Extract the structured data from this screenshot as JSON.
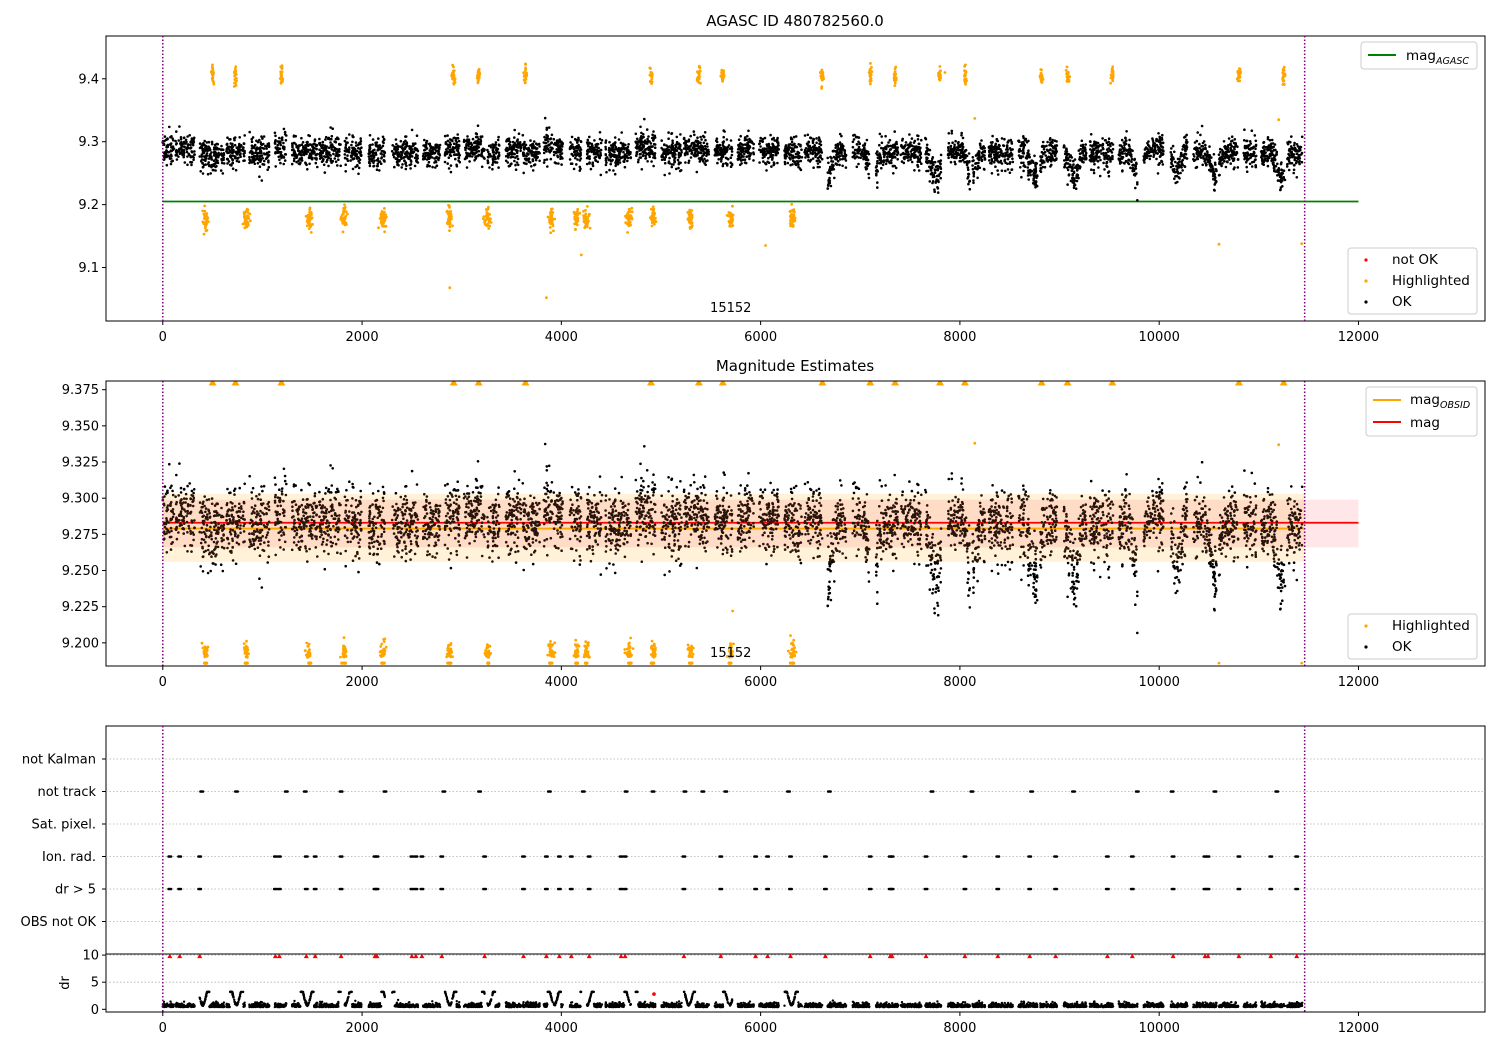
{
  "chart_data": [
    {
      "type": "scatter",
      "title": "AGASC ID 480782560.0",
      "xlim": [
        -570,
        13270
      ],
      "ylim": [
        9.015,
        9.468
      ],
      "xticks": [
        0,
        2000,
        4000,
        6000,
        8000,
        10000,
        12000
      ],
      "yticks": [
        9.1,
        9.2,
        9.3,
        9.4
      ],
      "xtick_labels": [
        "0",
        "2000",
        "4000",
        "6000",
        "8000",
        "10000",
        "12000"
      ],
      "ytick_labels": [
        "9.1",
        "9.2",
        "9.3",
        "9.4"
      ],
      "vlines": [
        0,
        11460
      ],
      "obsid_label": "15152",
      "obsid_label_x": 5700,
      "lines": [
        {
          "name": "mag_AGASC",
          "y": 9.205,
          "x0": 0,
          "x1": 12000,
          "color": "#008000"
        }
      ],
      "series": [
        {
          "name": "OK",
          "color": "#000000",
          "mean": 9.285,
          "spread": 0.012,
          "dips": true
        },
        {
          "name": "Highlighted",
          "color": "#ffa500",
          "clusters_high": [
            500,
            730,
            1190,
            2920,
            3170,
            3640,
            4900,
            5380,
            5620,
            6620,
            7100,
            7350,
            7800,
            8050,
            8820,
            9080,
            9530,
            10800,
            11250
          ],
          "clusters_low": [
            430,
            840,
            1470,
            1820,
            2210,
            2880,
            3260,
            3900,
            4150,
            4250,
            4680,
            4920,
            5300,
            5700,
            6320
          ],
          "high_value": 9.405,
          "low_value": 9.178
        }
      ],
      "legends": [
        {
          "position": "upper-right",
          "entries": [
            {
              "label": "mag",
              "sub": "AGASC",
              "kind": "line",
              "color": "#008000"
            }
          ]
        },
        {
          "position": "lower-right",
          "entries": [
            {
              "label": "not OK",
              "kind": "dot",
              "color": "#ff0000"
            },
            {
              "label": "Highlighted",
              "kind": "dot",
              "color": "#ffa500"
            },
            {
              "label": "OK",
              "kind": "dot",
              "color": "#000000"
            }
          ]
        }
      ]
    },
    {
      "type": "scatter",
      "title": "Magnitude Estimates",
      "xlim": [
        -570,
        13270
      ],
      "ylim": [
        9.184,
        9.381
      ],
      "xticks": [
        0,
        2000,
        4000,
        6000,
        8000,
        10000,
        12000
      ],
      "yticks": [
        9.2,
        9.225,
        9.25,
        9.275,
        9.3,
        9.325,
        9.35,
        9.375
      ],
      "xtick_labels": [
        "0",
        "2000",
        "4000",
        "6000",
        "8000",
        "10000",
        "12000"
      ],
      "ytick_labels": [
        "9.200",
        "9.225",
        "9.250",
        "9.275",
        "9.300",
        "9.325",
        "9.350",
        "9.375"
      ],
      "vlines": [
        0,
        11460
      ],
      "obsid_label": "15152",
      "obsid_label_x": 5700,
      "bands": [
        {
          "color": "#ffb6c1",
          "opacity": 0.35,
          "y0": 9.266,
          "y1": 9.299,
          "x0": 0,
          "x1": 12000
        },
        {
          "color": "#ffa500",
          "opacity": 0.15,
          "y0": 9.256,
          "y1": 9.303,
          "x0": 0,
          "x1": 11460
        }
      ],
      "lines": [
        {
          "name": "mag_OBSID",
          "y": 9.279,
          "x0": 0,
          "x1": 11460,
          "color": "#ffa500"
        },
        {
          "name": "mag",
          "y": 9.283,
          "x0": 0,
          "x1": 12000,
          "color": "#ff0000"
        }
      ],
      "legends": [
        {
          "position": "upper-right",
          "entries": [
            {
              "label": "mag",
              "sub": "OBSID",
              "kind": "line",
              "color": "#ffa500"
            },
            {
              "label": "mag",
              "kind": "line",
              "color": "#ff0000"
            }
          ]
        },
        {
          "position": "lower-right",
          "entries": [
            {
              "label": "Highlighted",
              "kind": "dot",
              "color": "#ffa500"
            },
            {
              "label": "OK",
              "kind": "dot",
              "color": "#000000"
            }
          ]
        }
      ]
    },
    {
      "type": "scatter",
      "title": "",
      "xlim": [
        -570,
        13270
      ],
      "flag_rows": [
        "not Kalman",
        "not track",
        "Sat. pixel.",
        "Ion. rad.",
        "dr > 5",
        "OBS not OK"
      ],
      "flag_positions": {
        "not track": [
          390,
          740,
          1240,
          1430,
          1790,
          2230,
          2820,
          3180,
          3880,
          4220,
          4650,
          4920,
          5240,
          5420,
          5650,
          6280,
          6690,
          7720,
          8120,
          8720,
          9140,
          9780,
          10130,
          10560,
          11180
        ],
        "Ion. rad.": [
          70,
          170,
          370,
          1130,
          1170,
          1440,
          1530,
          1790,
          2130,
          2150,
          2500,
          2540,
          2600,
          2800,
          3230,
          3620,
          3850,
          3980,
          4100,
          4280,
          4600,
          4640,
          5230,
          5600,
          5950,
          6070,
          6300,
          6650,
          7100,
          7300,
          7320,
          7660,
          8050,
          8380,
          8700,
          8960,
          9480,
          9730,
          10140,
          10460,
          10490,
          10800,
          11120,
          11380
        ],
        "dr > 5": [
          70,
          170,
          370,
          1130,
          1170,
          1440,
          1530,
          1790,
          2130,
          2150,
          2500,
          2540,
          2600,
          2800,
          3230,
          3620,
          3850,
          3980,
          4100,
          4280,
          4600,
          4640,
          5230,
          5600,
          5950,
          6070,
          6300,
          6650,
          7100,
          7300,
          7320,
          7660,
          8050,
          8380,
          8700,
          8960,
          9480,
          9730,
          10140,
          10460,
          10490,
          10800,
          11120,
          11380
        ]
      },
      "vlines": [
        0,
        11460
      ]
    },
    {
      "type": "scatter",
      "title": "",
      "ylabel": "dr",
      "xlim": [
        -570,
        13270
      ],
      "ylim": [
        -0.5,
        10.2
      ],
      "xticks": [
        0,
        2000,
        4000,
        6000,
        8000,
        10000,
        12000
      ],
      "yticks": [
        0,
        5,
        10
      ],
      "xtick_labels": [
        "0",
        "2000",
        "4000",
        "6000",
        "8000",
        "10000",
        "12000"
      ],
      "ytick_labels": [
        "0",
        "5",
        "10"
      ],
      "vlines": [
        0,
        11460
      ],
      "clipped_markers_color": "#ff0000",
      "hump_centers": [
        400,
        740,
        1450,
        1830,
        2260,
        2880,
        3270,
        3930,
        4260,
        4700,
        5280,
        5690,
        6310
      ]
    }
  ]
}
